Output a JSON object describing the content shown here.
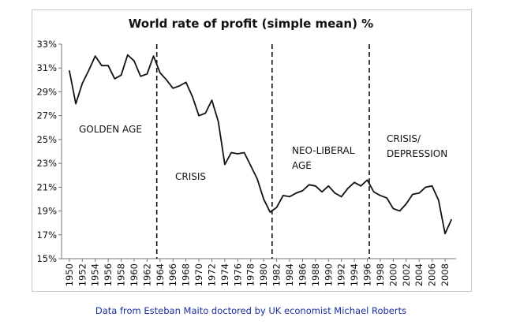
{
  "chart_data": {
    "type": "line",
    "title": "World rate of profit (simple mean) %",
    "x": [
      1950,
      1951,
      1952,
      1953,
      1954,
      1955,
      1956,
      1957,
      1958,
      1959,
      1960,
      1961,
      1962,
      1963,
      1964,
      1965,
      1966,
      1967,
      1968,
      1969,
      1970,
      1971,
      1972,
      1973,
      1974,
      1975,
      1976,
      1977,
      1978,
      1979,
      1980,
      1981,
      1982,
      1983,
      1984,
      1985,
      1986,
      1987,
      1988,
      1989,
      1990,
      1991,
      1992,
      1993,
      1994,
      1995,
      1996,
      1997,
      1998,
      1999,
      2000,
      2001,
      2002,
      2003,
      2004,
      2005,
      2006,
      2007,
      2008,
      2009
    ],
    "series": [
      {
        "color": "#111111",
        "values": [
          30.8,
          28.0,
          29.7,
          30.8,
          32.0,
          31.2,
          31.2,
          30.1,
          30.4,
          32.1,
          31.6,
          30.3,
          30.5,
          32.0,
          30.6,
          30.0,
          29.3,
          29.5,
          29.8,
          28.6,
          27.0,
          27.2,
          28.3,
          26.5,
          22.9,
          23.9,
          23.8,
          23.9,
          22.8,
          21.7,
          20.0,
          18.9,
          19.3,
          20.3,
          20.2,
          20.5,
          20.7,
          21.2,
          21.1,
          20.6,
          21.1,
          20.5,
          20.2,
          20.9,
          21.4,
          21.1,
          21.6,
          20.6,
          20.3,
          20.1,
          19.2,
          19.0,
          19.6,
          20.4,
          20.5,
          21.0,
          21.1,
          19.9,
          17.1,
          18.3
        ]
      }
    ],
    "xlim": [
      1948.8,
      2009.7
    ],
    "xticks": [
      1950,
      1952,
      1954,
      1956,
      1958,
      1960,
      1962,
      1964,
      1966,
      1968,
      1970,
      1972,
      1974,
      1976,
      1978,
      1980,
      1982,
      1984,
      1986,
      1988,
      1990,
      1992,
      1994,
      1996,
      1998,
      2000,
      2002,
      2004,
      2006,
      2008
    ],
    "ylim": [
      15,
      33
    ],
    "yticks": [
      {
        "value": 15,
        "label": "15%"
      },
      {
        "value": 17,
        "label": "17%"
      },
      {
        "value": 19,
        "label": "19%"
      },
      {
        "value": 21,
        "label": "21%"
      },
      {
        "value": 23,
        "label": "23%"
      },
      {
        "value": 25,
        "label": "25%"
      },
      {
        "value": 27,
        "label": "27%"
      },
      {
        "value": 29,
        "label": "29%"
      },
      {
        "value": 31,
        "label": "31%"
      },
      {
        "value": 33,
        "label": "33%"
      }
    ],
    "grid": false,
    "dividers": [
      1963.5,
      1981.3,
      1996.3
    ],
    "annotations": [
      [
        "GOLDEN AGE"
      ],
      [
        "CRISIS"
      ],
      [
        "NEO-LIBERAL",
        "AGE"
      ],
      [
        "CRISIS/",
        "DEPRESSION"
      ]
    ],
    "caption": "Data from Esteban Maito doctored by UK economist Michael Roberts"
  }
}
